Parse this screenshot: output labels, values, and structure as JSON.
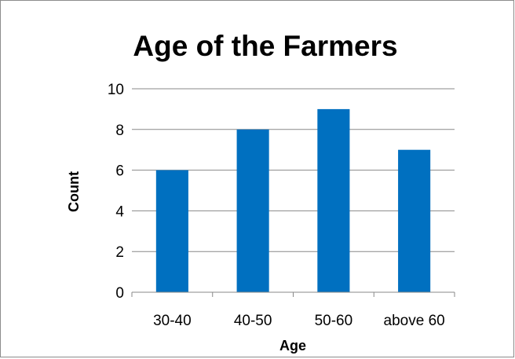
{
  "chart_data": {
    "type": "bar",
    "title": "Age of the Farmers",
    "xlabel": "Age",
    "ylabel": "Count",
    "categories": [
      "30-40",
      "40-50",
      "50-60",
      "above 60"
    ],
    "values": [
      6,
      8,
      9,
      7
    ],
    "ylim": [
      0,
      10
    ],
    "yticks": [
      0,
      2,
      4,
      6,
      8,
      10
    ],
    "grid": true,
    "legend": "none",
    "bar_color": "#0070C0"
  }
}
